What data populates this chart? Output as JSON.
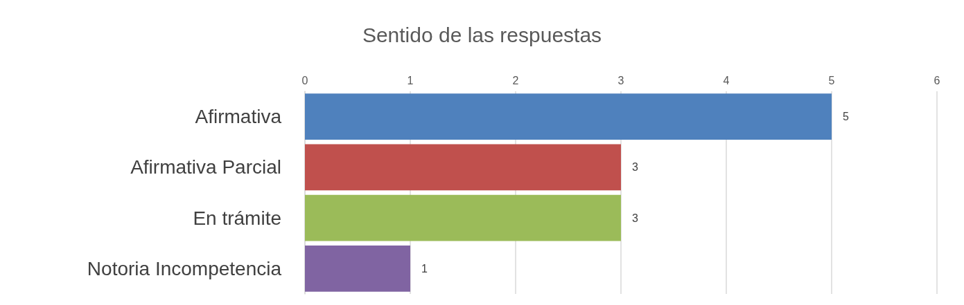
{
  "chart_data": {
    "type": "bar",
    "orientation": "horizontal",
    "title": "Sentido de las respuestas",
    "categories": [
      "Afirmativa",
      "Afirmativa Parcial",
      "En trámite",
      "Notoria Incompetencia"
    ],
    "values": [
      5,
      3,
      3,
      1
    ],
    "colors": [
      "#4f81bd",
      "#c0504d",
      "#9bbb59",
      "#8064a2"
    ],
    "xlim": [
      0,
      6
    ],
    "xticks": [
      0,
      1,
      2,
      3,
      4,
      5,
      6
    ],
    "grid": "x",
    "data_labels": true
  }
}
